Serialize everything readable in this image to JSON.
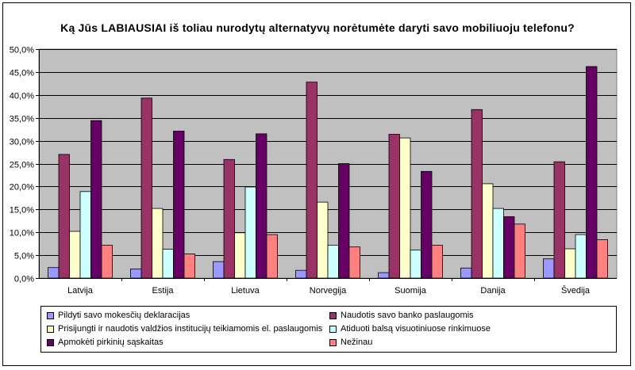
{
  "chart_data": {
    "type": "bar",
    "title": "Ką Jūs LABIAUSIAI iš toliau nurodytų alternatyvų norėtumėte daryti savo mobiliuoju telefonu?",
    "xlabel": "",
    "ylabel": "",
    "ylim": [
      0,
      50
    ],
    "yticks": [
      "0,0%",
      "5,0%",
      "10,0%",
      "15,0%",
      "20,0%",
      "25,0%",
      "30,0%",
      "35,0%",
      "40,0%",
      "45,0%",
      "50,0%"
    ],
    "grid": true,
    "legend_position": "bottom",
    "categories": [
      "Latvija",
      "Estija",
      "Lietuva",
      "Norvegija",
      "Suomija",
      "Danija",
      "Švedija"
    ],
    "series": [
      {
        "name": "Pildyti savo mokesčių deklaracijas",
        "color": "#9999ff",
        "values": [
          2.3,
          2.0,
          3.6,
          1.7,
          1.2,
          2.2,
          4.2
        ]
      },
      {
        "name": "Naudotis savo banko paslaugomis",
        "color": "#993366",
        "values": [
          27.0,
          39.3,
          25.9,
          42.8,
          31.4,
          36.8,
          25.4
        ]
      },
      {
        "name": "Prisijungti ir naudotis valdžios institucijų teikiamomis el. paslaugomis",
        "color": "#ffffcc",
        "values": [
          10.2,
          15.2,
          9.9,
          16.6,
          30.6,
          20.6,
          6.4
        ]
      },
      {
        "name": "Atiduoti balsą visuotiniuose rinkimuose",
        "color": "#ccffff",
        "values": [
          18.9,
          6.3,
          19.9,
          7.2,
          6.1,
          15.2,
          9.5
        ]
      },
      {
        "name": "Apmokėti pirkinių sąskaitas",
        "color": "#660066",
        "values": [
          34.4,
          32.1,
          31.5,
          25.0,
          23.3,
          13.4,
          46.2
        ]
      },
      {
        "name": "Nežinau",
        "color": "#ff8080",
        "values": [
          7.2,
          5.3,
          9.5,
          6.8,
          7.2,
          11.8,
          8.4
        ]
      }
    ]
  },
  "legend": {
    "items": [
      "Pildyti savo mokesčių deklaracijas",
      "Naudotis savo banko paslaugomis",
      "Prisijungti ir naudotis valdžios institucijų teikiamomis el. paslaugomis",
      "Atiduoti balsą visuotiniuose rinkimuose",
      "Apmokėti pirkinių sąskaitas",
      "Nežinau"
    ]
  },
  "style": {
    "plot_background": "#c0c0c0",
    "gridline_color": "#000000"
  }
}
